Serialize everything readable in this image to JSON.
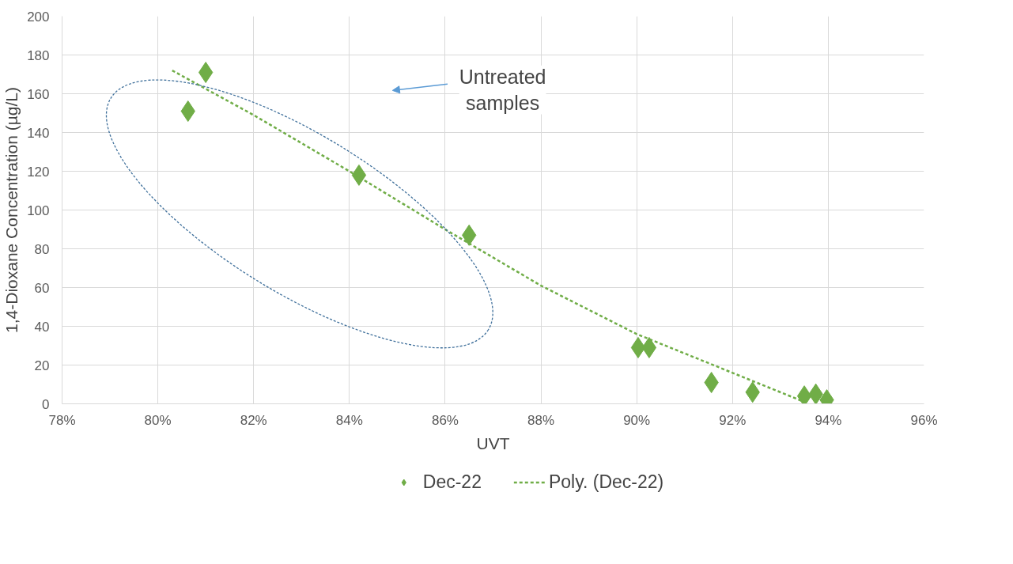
{
  "chart_data": {
    "type": "scatter",
    "xlabel": "UVT",
    "ylabel": "1,4-Dioxane Concentration (µg/L)",
    "xlim": [
      78,
      96
    ],
    "xticks": [
      {
        "value": 78,
        "label": "78%"
      },
      {
        "value": 80,
        "label": "80%"
      },
      {
        "value": 82,
        "label": "82%"
      },
      {
        "value": 84,
        "label": "84%"
      },
      {
        "value": 86,
        "label": "86%"
      },
      {
        "value": 88,
        "label": "88%"
      },
      {
        "value": 90,
        "label": "90%"
      },
      {
        "value": 92,
        "label": "92%"
      },
      {
        "value": 94,
        "label": "94%"
      },
      {
        "value": 96,
        "label": "96%"
      }
    ],
    "ylim": [
      0,
      200
    ],
    "yticks": [
      0,
      20,
      40,
      60,
      80,
      100,
      120,
      140,
      160,
      180,
      200
    ],
    "grid": true,
    "legend": "bottom",
    "marker": "diamond",
    "series": [
      {
        "name": "Dec-22",
        "type": "scatter",
        "color": "#70ad47",
        "x": [
          80.63,
          81.0,
          84.2,
          86.5,
          90.03,
          90.26,
          91.56,
          92.42,
          93.5,
          93.74,
          93.97
        ],
        "values": [
          151,
          171,
          118,
          87,
          29,
          29,
          11,
          6,
          4,
          5,
          2
        ]
      },
      {
        "name": "Poly. (Dec-22)",
        "type": "line",
        "line_style": "dashed",
        "marker": "none",
        "color": "#70ad47",
        "x": [
          80.3,
          82,
          84,
          86,
          88,
          90,
          92,
          93.5
        ],
        "values": [
          172,
          149,
          120,
          90,
          61,
          36,
          16,
          1
        ]
      }
    ],
    "annotations": [
      "Untreated samples"
    ]
  }
}
